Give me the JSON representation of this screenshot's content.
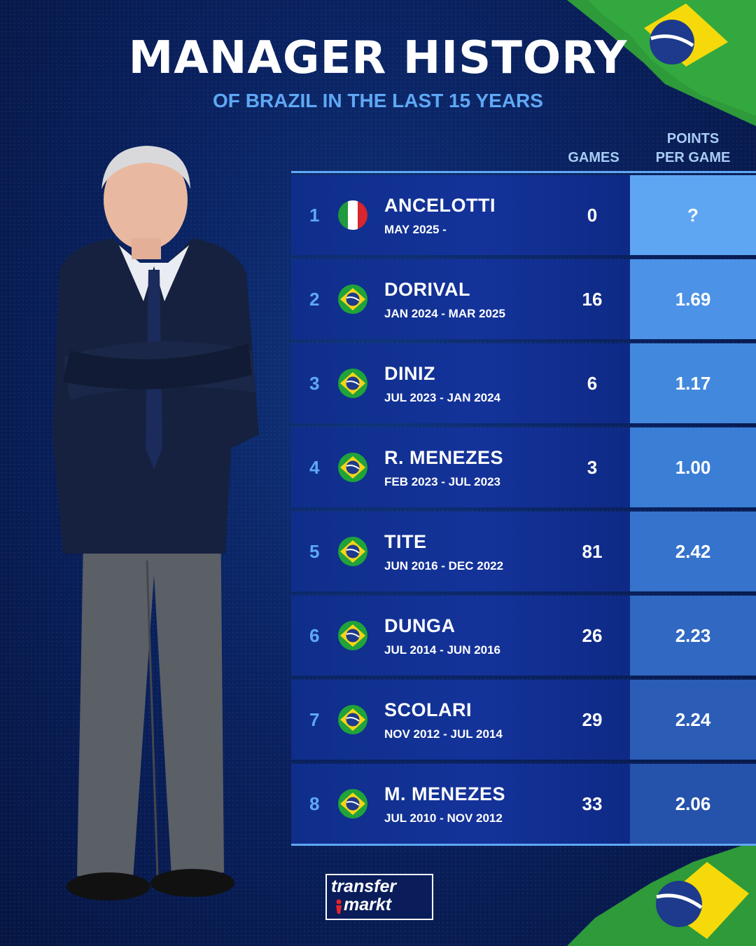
{
  "header": {
    "title": "MANAGER HISTORY",
    "subtitle": "OF BRAZIL IN THE LAST 15 YEARS"
  },
  "columns": {
    "games": "GAMES",
    "ppg_line1": "POINTS",
    "ppg_line2": "PER GAME"
  },
  "colors": {
    "ppg_shades": [
      "#5ea6f2",
      "#4c92e6",
      "#4289dd",
      "#3a7ed6",
      "#3573cc",
      "#3068c2",
      "#2b5db6",
      "#2552aa"
    ]
  },
  "rows": [
    {
      "rank": "1",
      "flag": "italy-flag-icon",
      "name": "ANCELOTTI",
      "period": "MAY 2025 -",
      "games": "0",
      "ppg": "?"
    },
    {
      "rank": "2",
      "flag": "brazil-flag-icon",
      "name": "DORIVAL",
      "period": "JAN 2024 - MAR 2025",
      "games": "16",
      "ppg": "1.69"
    },
    {
      "rank": "3",
      "flag": "brazil-flag-icon",
      "name": "DINIZ",
      "period": "JUL 2023 - JAN 2024",
      "games": "6",
      "ppg": "1.17"
    },
    {
      "rank": "4",
      "flag": "brazil-flag-icon",
      "name": "R. MENEZES",
      "period": "FEB 2023 - JUL 2023",
      "games": "3",
      "ppg": "1.00"
    },
    {
      "rank": "5",
      "flag": "brazil-flag-icon",
      "name": "TITE",
      "period": "JUN 2016 - DEC 2022",
      "games": "81",
      "ppg": "2.42"
    },
    {
      "rank": "6",
      "flag": "brazil-flag-icon",
      "name": "DUNGA",
      "period": "JUL 2014 - JUN 2016",
      "games": "26",
      "ppg": "2.23"
    },
    {
      "rank": "7",
      "flag": "brazil-flag-icon",
      "name": "SCOLARI",
      "period": "NOV 2012 - JUL 2014",
      "games": "29",
      "ppg": "2.24"
    },
    {
      "rank": "8",
      "flag": "brazil-flag-icon",
      "name": "M. MENEZES",
      "period": "JUL 2010 - NOV 2012",
      "games": "33",
      "ppg": "2.06"
    }
  ],
  "logo": {
    "line1": "transfer",
    "line2": "markt"
  }
}
